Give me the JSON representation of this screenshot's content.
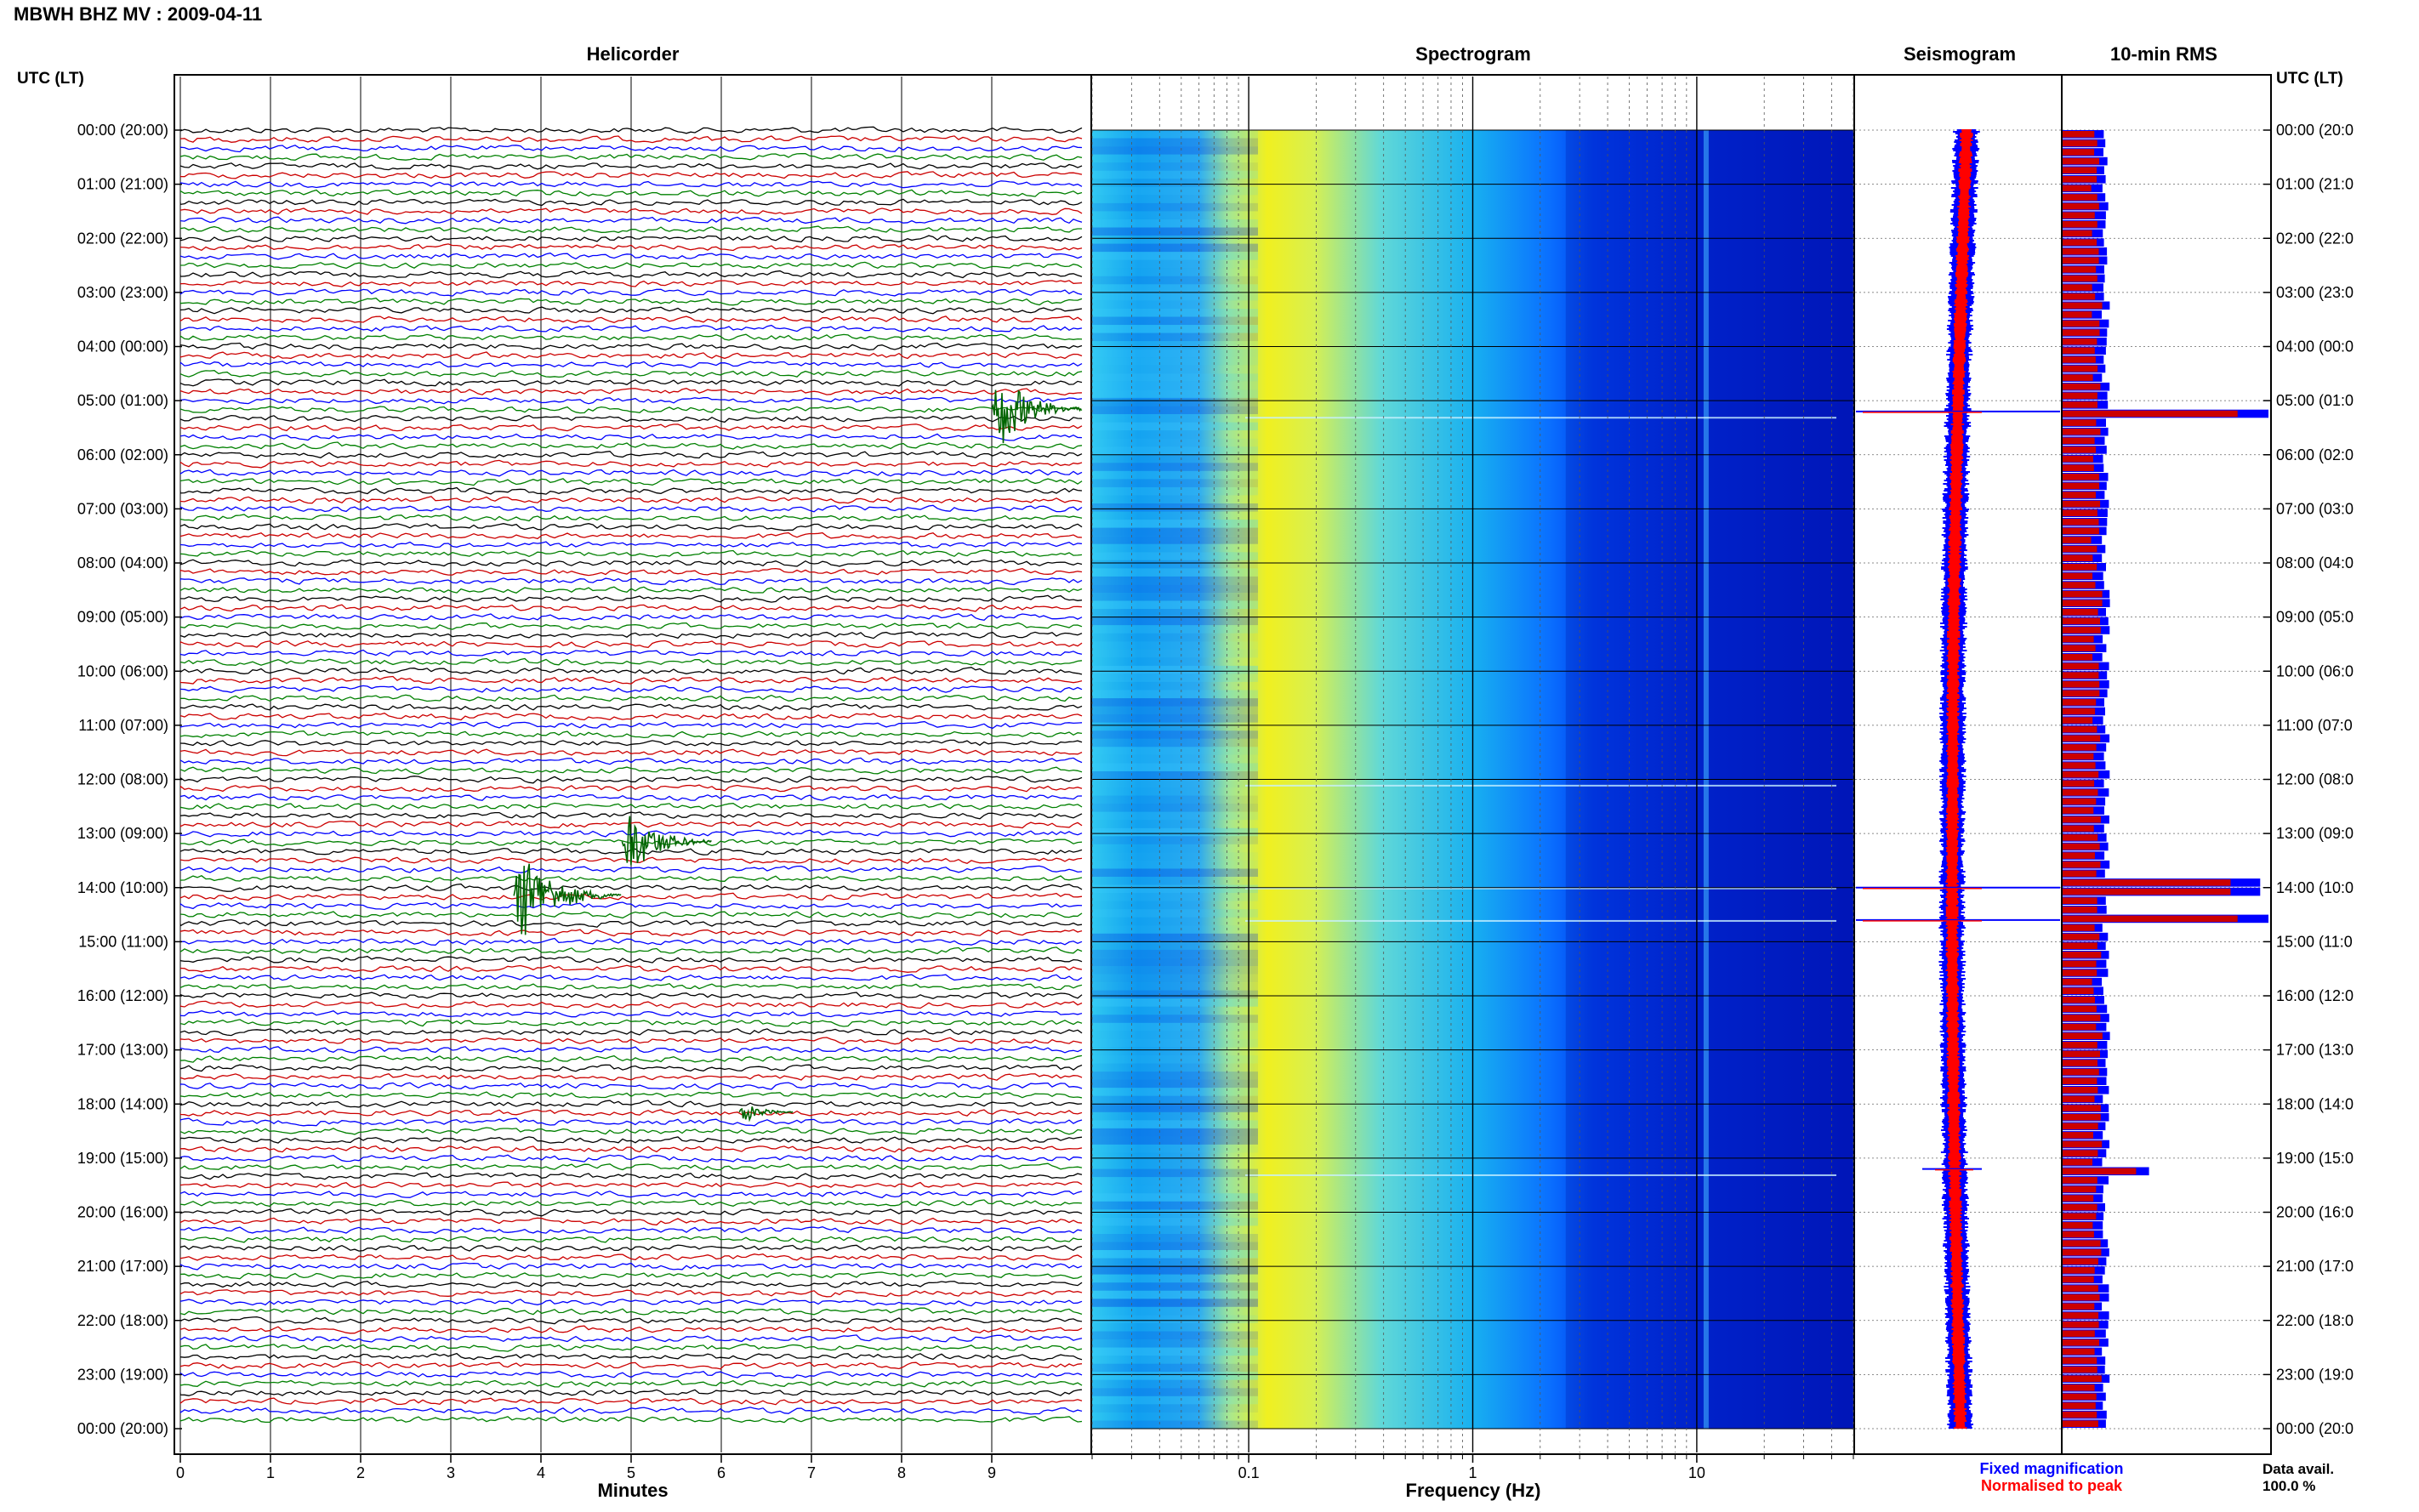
{
  "header": {
    "title": "MBWH BHZ MV : 2009-04-11"
  },
  "panels": {
    "helicorder": {
      "title": "Helicorder",
      "xlabel": "Minutes"
    },
    "spectrogram": {
      "title": "Spectrogram",
      "xlabel": "Frequency (Hz)"
    },
    "seismogram": {
      "title": "Seismogram"
    },
    "rms": {
      "title": "10-min RMS"
    }
  },
  "axis_labels": {
    "left_header": "UTC (LT)",
    "right_header": "UTC (LT)"
  },
  "legend": {
    "fixed": "Fixed magnification",
    "normalised": "Normalised to peak",
    "fixed_color": "#0000ff",
    "normalised_color": "#ff0000"
  },
  "footer": {
    "data_avail_label": "Data avail.",
    "data_avail_value": "100.0 %"
  },
  "chart_data": [
    {
      "type": "line",
      "name": "helicorder",
      "title": "Helicorder",
      "xlabel": "Minutes",
      "x_ticks": [
        "0",
        "1",
        "2",
        "3",
        "4",
        "5",
        "6",
        "7",
        "8",
        "9"
      ],
      "xlim": [
        0,
        10
      ],
      "time_labels": [
        "00:00 (20:00)",
        "01:00 (21:00)",
        "02:00 (22:00)",
        "03:00 (23:00)",
        "04:00 (00:00)",
        "05:00 (01:00)",
        "06:00 (02:00)",
        "07:00 (03:00)",
        "08:00 (04:00)",
        "09:00 (05:00)",
        "10:00 (06:00)",
        "11:00 (07:00)",
        "12:00 (08:00)",
        "13:00 (09:00)",
        "14:00 (10:00)",
        "15:00 (11:00)",
        "16:00 (12:00)",
        "17:00 (13:00)",
        "18:00 (14:00)",
        "19:00 (15:00)",
        "20:00 (16:00)",
        "21:00 (17:00)",
        "22:00 (18:00)",
        "23:00 (19:00)",
        "00:00 (20:00)"
      ],
      "right_time_labels": [
        "00:00 (20:0",
        "01:00 (21:0",
        "02:00 (22:0",
        "03:00 (23:0",
        "04:00 (00:0",
        "05:00 (01:0",
        "06:00 (02:0",
        "07:00 (03:0",
        "08:00 (04:0",
        "09:00 (05:0",
        "10:00 (06:0",
        "11:00 (07:0",
        "12:00 (08:0",
        "13:00 (09:0",
        "14:00 (10:0",
        "15:00 (11:0",
        "16:00 (12:0",
        "17:00 (13:0",
        "18:00 (14:0",
        "19:00 (15:0",
        "20:00 (16:0",
        "21:00 (17:0",
        "22:00 (18:0",
        "23:00 (19:0",
        "00:00 (20:0"
      ],
      "line_colors": [
        "#000000",
        "#cc0000",
        "#0000ff",
        "#008000"
      ],
      "traces_per_hour": 6,
      "events": [
        {
          "hour": 5,
          "minute": 9.1,
          "amplitude": 3.0,
          "duration_min": 1.0
        },
        {
          "hour": 13,
          "minute": 5.0,
          "amplitude": 2.5,
          "duration_min": 1.0
        },
        {
          "hour": 14,
          "minute": 3.8,
          "amplitude": 3.2,
          "duration_min": 1.2
        },
        {
          "hour": 18,
          "minute": 6.3,
          "amplitude": 0.8,
          "duration_min": 0.6
        }
      ]
    },
    {
      "type": "heatmap",
      "name": "spectrogram",
      "title": "Spectrogram",
      "xlabel": "Frequency (Hz)",
      "x_scale": "log",
      "xlim": [
        0.02,
        50
      ],
      "x_ticks": [
        "0.1",
        "1",
        "10"
      ],
      "colormap": [
        "#00008b",
        "#0000ff",
        "#0050ff",
        "#00b0ff",
        "#30d8e8",
        "#a0e890",
        "#f0f020"
      ]
    },
    {
      "type": "line",
      "name": "seismogram",
      "title": "Seismogram",
      "series": [
        {
          "name": "Fixed magnification",
          "color": "#0000ff"
        },
        {
          "name": "Normalised to peak",
          "color": "#ff0000"
        }
      ],
      "spike_hours": [
        5.2,
        14.0,
        14.6,
        19.2
      ]
    },
    {
      "type": "bar",
      "name": "rms",
      "title": "10-min RMS",
      "orientation": "horizontal",
      "series": [
        {
          "name": "Fixed magnification",
          "color": "#0000ff"
        },
        {
          "name": "Normalised to peak",
          "color": "#cc0000"
        }
      ],
      "peaks": [
        {
          "hour": 5.2,
          "value": 1.0
        },
        {
          "hour": 14.0,
          "value": 0.96
        },
        {
          "hour": 14.6,
          "value": 1.0
        },
        {
          "hour": 19.2,
          "value": 0.42
        }
      ]
    }
  ]
}
